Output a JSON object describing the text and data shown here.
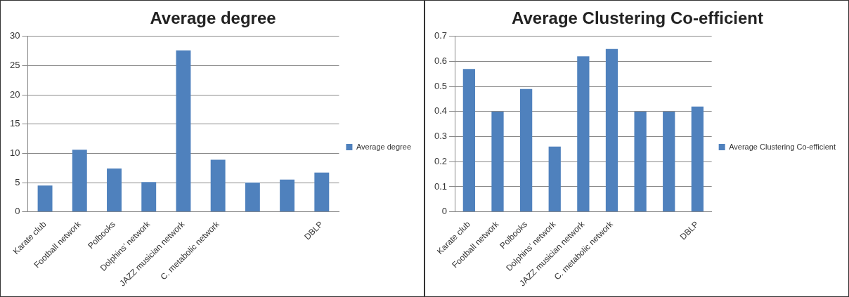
{
  "chart_data": [
    {
      "type": "bar",
      "title": "Average degree",
      "categories": [
        "Karate club",
        "Football network",
        "Polbooks",
        "Dolphins’ network",
        "JAZZ musician network",
        "C. metabolic network",
        null,
        null,
        "DBLP"
      ],
      "series": [
        {
          "name": "Average degree",
          "color": "#4f81bd",
          "values": [
            4.5,
            10.6,
            7.4,
            5.1,
            27.6,
            8.9,
            5.0,
            5.5,
            6.7
          ]
        }
      ],
      "ylim": [
        0,
        30
      ],
      "yticks": [
        0,
        5,
        10,
        15,
        20,
        25,
        30
      ],
      "grid": "y",
      "legend": "right"
    },
    {
      "type": "bar",
      "title": "Average Clustering Co-efficient",
      "categories": [
        "Karate club",
        "Football network",
        "Polbooks",
        "Dolphins’ network",
        "JAZZ musician network",
        "C. metabolic network",
        null,
        null,
        "DBLP"
      ],
      "series": [
        {
          "name": "Average Clustering Co-efficient",
          "color": "#4f81bd",
          "values": [
            0.57,
            0.4,
            0.49,
            0.26,
            0.62,
            0.65,
            0.4,
            0.4,
            0.42
          ]
        }
      ],
      "ylim": [
        0,
        0.7
      ],
      "yticks": [
        0,
        0.1,
        0.2,
        0.3,
        0.4,
        0.5,
        0.6,
        0.7
      ],
      "grid": "y",
      "legend": "right"
    }
  ]
}
